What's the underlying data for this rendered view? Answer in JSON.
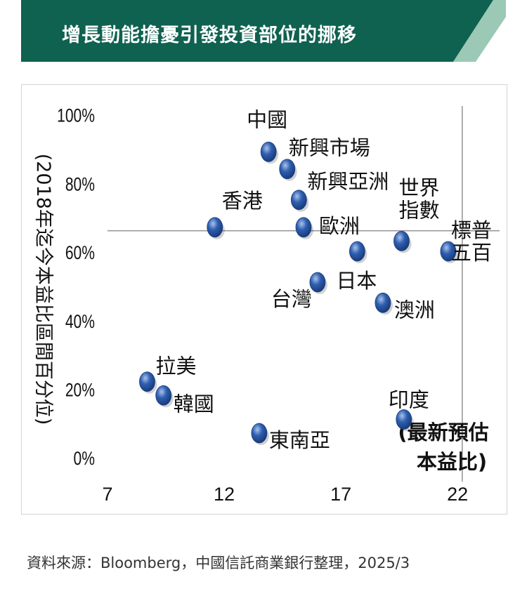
{
  "header": {
    "title": "增長動能擔憂引發投資部位的挪移"
  },
  "colors": {
    "banner": "#0f6150",
    "accent_stripe": "#9bc9b5",
    "point": "#2f5fb0",
    "point_highlight": "#a9c2ec",
    "crosshair": "#9a9a9a"
  },
  "chart_data": {
    "type": "scatter",
    "title": "",
    "xlabel": "(最新預估本益比)",
    "ylabel": "(2018年迄今本益比區間百分位)",
    "xlim": [
      7,
      23.5
    ],
    "ylim": [
      -0.02,
      1.04
    ],
    "xticks": [
      7,
      12,
      17,
      22
    ],
    "xtick_labels": [
      "7",
      "12",
      "17",
      "22"
    ],
    "yticks": [
      0,
      0.2,
      0.4,
      0.6,
      0.8,
      1.0
    ],
    "ytick_labels": [
      "0%",
      "20%",
      "40%",
      "60%",
      "80%",
      "100%"
    ],
    "grid": false,
    "reference_lines": {
      "x": 22.2,
      "y": 0.66
    },
    "points": [
      {
        "name": "中國",
        "x": 13.9,
        "y": 0.89
      },
      {
        "name": "新興市場",
        "x": 14.7,
        "y": 0.84
      },
      {
        "name": "新興亞洲",
        "x": 15.2,
        "y": 0.75
      },
      {
        "name": "香港",
        "x": 11.6,
        "y": 0.67
      },
      {
        "name": "歐洲",
        "x": 15.4,
        "y": 0.67
      },
      {
        "name": "世界指數",
        "x": 19.6,
        "y": 0.63
      },
      {
        "name": "標普五百",
        "x": 21.6,
        "y": 0.6
      },
      {
        "name": "日本",
        "x": 17.7,
        "y": 0.6
      },
      {
        "name": "台灣",
        "x": 16.0,
        "y": 0.51
      },
      {
        "name": "澳洲",
        "x": 18.8,
        "y": 0.45
      },
      {
        "name": "拉美",
        "x": 8.7,
        "y": 0.22
      },
      {
        "name": "韓國",
        "x": 9.4,
        "y": 0.18
      },
      {
        "name": "印度",
        "x": 19.7,
        "y": 0.11
      },
      {
        "name": "東南亞",
        "x": 13.5,
        "y": 0.07
      }
    ]
  },
  "footer": {
    "source": "資料來源：Bloomberg，中國信託商業銀行整理，2025/3"
  }
}
